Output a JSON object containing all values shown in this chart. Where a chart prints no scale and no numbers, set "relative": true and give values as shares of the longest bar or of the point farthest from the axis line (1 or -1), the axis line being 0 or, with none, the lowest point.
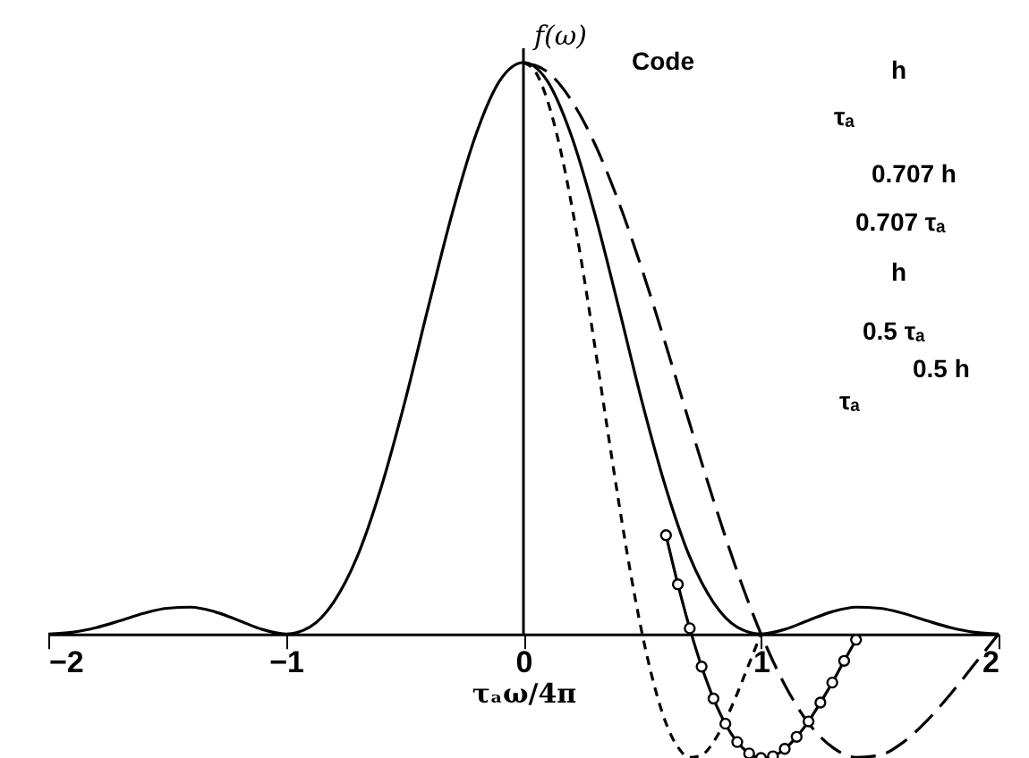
{
  "chart_data": {
    "type": "line",
    "relative": true,
    "ylabel": "f(ω)",
    "xlabel": "τₐω/4π",
    "xlim": [
      -2,
      2
    ],
    "xticks": [
      -2,
      -1,
      0,
      1,
      2
    ],
    "tick_labels": "x",
    "grid": false,
    "ref_lines": [
      {
        "axis": "x",
        "value": 0
      }
    ],
    "annotations": [
      "Code",
      "h",
      "τₐ",
      "0.707 h",
      "0.707 τₐ",
      "h",
      "0.5 τₐ",
      "0.5 h",
      "τₐ"
    ],
    "series": [
      {
        "color": "#000000",
        "line_style": "solid",
        "marker": "none",
        "x": [
          -2,
          -1.9,
          -1.8,
          -1.7,
          -1.6,
          -1.5,
          -1.4,
          -1.3,
          -1.2,
          -1.1,
          -1,
          -0.9,
          -0.8,
          -0.7,
          -0.6,
          -0.5,
          -0.4,
          -0.3,
          -0.2,
          -0.1,
          0,
          0.1,
          0.2,
          0.3,
          0.4,
          0.5,
          0.6,
          0.7,
          0.8,
          0.9,
          1,
          1.1,
          1.2,
          1.3,
          1.4,
          1.5,
          1.6,
          1.7,
          1.8,
          1.9,
          2
        ],
        "values": [
          0,
          0.003,
          0.011,
          0.023,
          0.036,
          0.045,
          0.047,
          0.039,
          0.024,
          0.008,
          0,
          0.012,
          0.055,
          0.135,
          0.255,
          0.405,
          0.573,
          0.736,
          0.874,
          0.968,
          1,
          0.968,
          0.874,
          0.736,
          0.573,
          0.405,
          0.255,
          0.135,
          0.055,
          0.012,
          0,
          0.008,
          0.024,
          0.039,
          0.047,
          0.045,
          0.036,
          0.023,
          0.011,
          0.003,
          0
        ]
      },
      {
        "color": "#000000",
        "line_style": "dashed",
        "marker": "none",
        "x": [
          0,
          0.1,
          0.2,
          0.3,
          0.4,
          0.5,
          0.6,
          0.7,
          0.8,
          0.9,
          1,
          1.1,
          1.2,
          1.3,
          1.4,
          1.5,
          1.6,
          1.7,
          1.8,
          1.9,
          2
        ],
        "values": [
          1,
          0.984,
          0.935,
          0.858,
          0.757,
          0.637,
          0.505,
          0.368,
          0.234,
          0.109,
          0,
          -0.089,
          -0.156,
          -0.198,
          -0.216,
          -0.212,
          -0.189,
          -0.151,
          -0.104,
          -0.052,
          0
        ]
      },
      {
        "color": "#000000",
        "line_style": "dotted",
        "marker": "none",
        "x": [
          0,
          0.05,
          0.1,
          0.15,
          0.2,
          0.25,
          0.3,
          0.35,
          0.4,
          0.45,
          0.5,
          0.55,
          0.6,
          0.65,
          0.7,
          0.75,
          0.8,
          0.85,
          0.9,
          0.95,
          1
        ],
        "values": [
          1,
          0.984,
          0.935,
          0.858,
          0.757,
          0.637,
          0.505,
          0.368,
          0.234,
          0.109,
          0,
          -0.089,
          -0.156,
          -0.198,
          -0.216,
          -0.212,
          -0.189,
          -0.151,
          -0.104,
          -0.052,
          0
        ]
      },
      {
        "color": "#000000",
        "line_style": "solid",
        "marker": "circle",
        "x": [
          0.6,
          0.65,
          0.7,
          0.75,
          0.8,
          0.85,
          0.9,
          0.95,
          1,
          1.05,
          1.1,
          1.15,
          1.2,
          1.25,
          1.3,
          1.35,
          1.4
        ],
        "values": [
          0.173,
          0.087,
          0.01,
          -0.057,
          -0.113,
          -0.157,
          -0.189,
          -0.209,
          -0.217,
          -0.214,
          -0.201,
          -0.18,
          -0.153,
          -0.12,
          -0.085,
          -0.047,
          -0.01
        ]
      }
    ]
  }
}
